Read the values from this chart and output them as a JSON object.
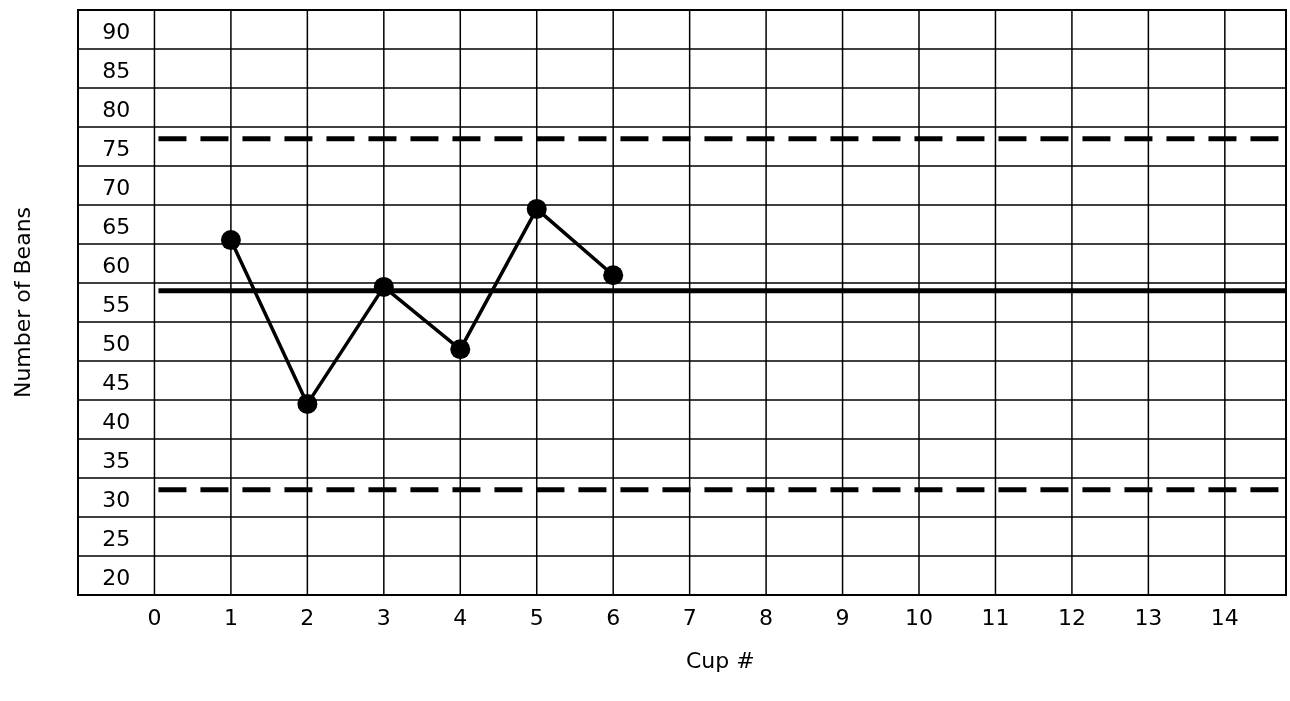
{
  "chart_data": {
    "type": "line",
    "xlabel": "Cup #",
    "ylabel": "Number of Beans",
    "x": [
      1,
      2,
      3,
      4,
      5,
      6
    ],
    "series": [
      {
        "color": "#000000",
        "values": [
          65.5,
          44.5,
          59.5,
          51.5,
          69.5,
          61
        ]
      }
    ],
    "xlim": [
      -1,
      14.8
    ],
    "xticks": [
      0,
      1,
      2,
      3,
      4,
      5,
      6,
      7,
      8,
      9,
      10,
      11,
      12,
      13,
      14
    ],
    "ylim": [
      20,
      95
    ],
    "yticks": [
      20,
      25,
      30,
      35,
      40,
      45,
      50,
      55,
      60,
      65,
      70,
      75,
      80,
      85,
      90
    ],
    "grid": true,
    "marker": "circle",
    "line_style": "solid",
    "ref_lines": [
      {
        "axis": "y",
        "value": 78.5,
        "color": "#000000",
        "line_style": "dashed"
      },
      {
        "axis": "y",
        "value": 59,
        "color": "#000000",
        "line_style": "solid"
      },
      {
        "axis": "y",
        "value": 33.5,
        "color": "#000000",
        "line_style": "dashed"
      }
    ]
  }
}
